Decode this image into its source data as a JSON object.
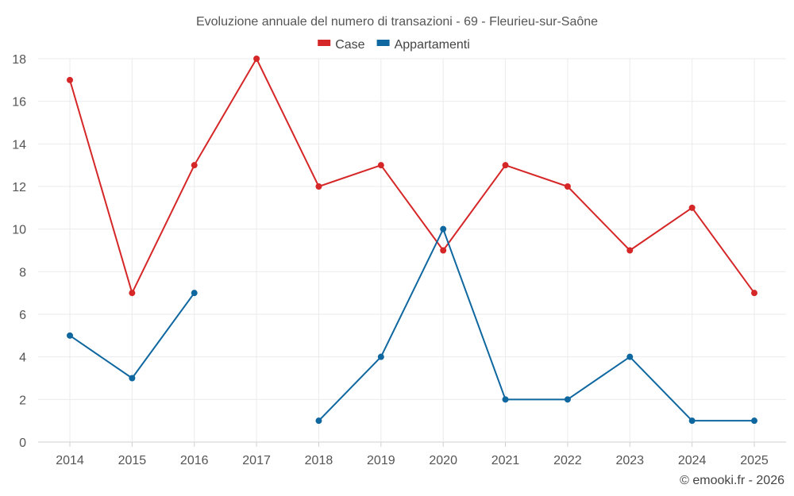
{
  "chart_data": {
    "type": "line",
    "title": "Evoluzione annuale del numero di transazioni - 69 - Fleurieu-sur-Saône",
    "xlabel": "",
    "ylabel": "",
    "categories": [
      "2014",
      "2015",
      "2016",
      "2017",
      "2018",
      "2019",
      "2020",
      "2021",
      "2022",
      "2023",
      "2024",
      "2025"
    ],
    "ylim": [
      0,
      18
    ],
    "yticks": [
      0,
      2,
      4,
      6,
      8,
      10,
      12,
      14,
      16,
      18
    ],
    "grid": true,
    "legend_position": "top-center",
    "series": [
      {
        "name": "Case",
        "color": "#d62728",
        "values": [
          17,
          7,
          13,
          18,
          12,
          13,
          9,
          13,
          12,
          9,
          11,
          7
        ]
      },
      {
        "name": "Appartamenti",
        "color": "#0f67a0",
        "values": [
          5,
          3,
          7,
          null,
          1,
          4,
          10,
          2,
          2,
          4,
          1,
          1
        ]
      }
    ]
  },
  "credit": "© emooki.fr - 2026"
}
